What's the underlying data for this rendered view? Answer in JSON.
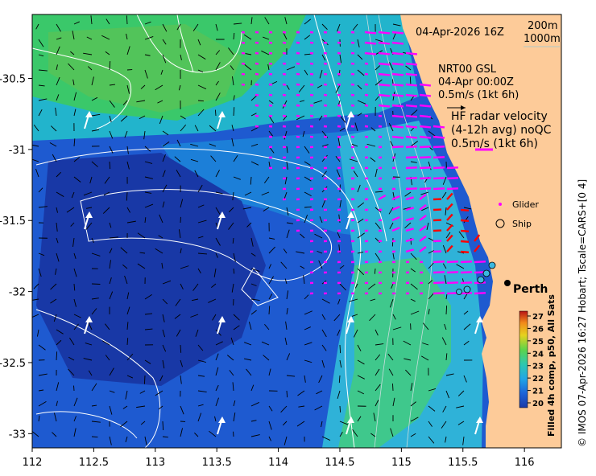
{
  "map": {
    "date_label": "04-Apr-2026 16Z",
    "depth_contours": [
      "200m",
      "1000m"
    ],
    "gsl_label": "NRT00 GSL",
    "gsl_time": "04-Apr 00:00Z",
    "gsl_scale": "0.5m/s (1kt 6h)",
    "hf_title": "HF radar velocity",
    "hf_subtitle": "(4-12h avg) noQC",
    "hf_scale": "0.5m/s (1kt 6h)",
    "legend_glider": "Glider",
    "legend_ship": "Ship",
    "city": "Perth",
    "credit": "© IMOS 07-Apr-2026 16:27 Hobart; Tscale=CARS+[0 4]",
    "colorbar_title": "Filled 4h comp, p50, All Sats",
    "colorbar_ticks": [
      "27",
      "26",
      "25",
      "24",
      "23",
      "22",
      "21",
      "20"
    ],
    "x_ticks": [
      "112",
      "112.5",
      "113",
      "113.5",
      "114",
      "114.5",
      "115",
      "115.5",
      "116"
    ],
    "y_ticks": [
      "-30.5",
      "-31",
      "-31.5",
      "-32",
      "-32.5",
      "-33"
    ],
    "x_range": [
      112,
      116.3
    ],
    "y_range": [
      -33.1,
      -30.05
    ],
    "colors": {
      "land": "#fdcb99",
      "vector_gsl": "#000000",
      "vector_hf": "#ff00ff",
      "vector_hf_nearshore": "#ff0000",
      "trajectory": "#ffffff"
    }
  }
}
